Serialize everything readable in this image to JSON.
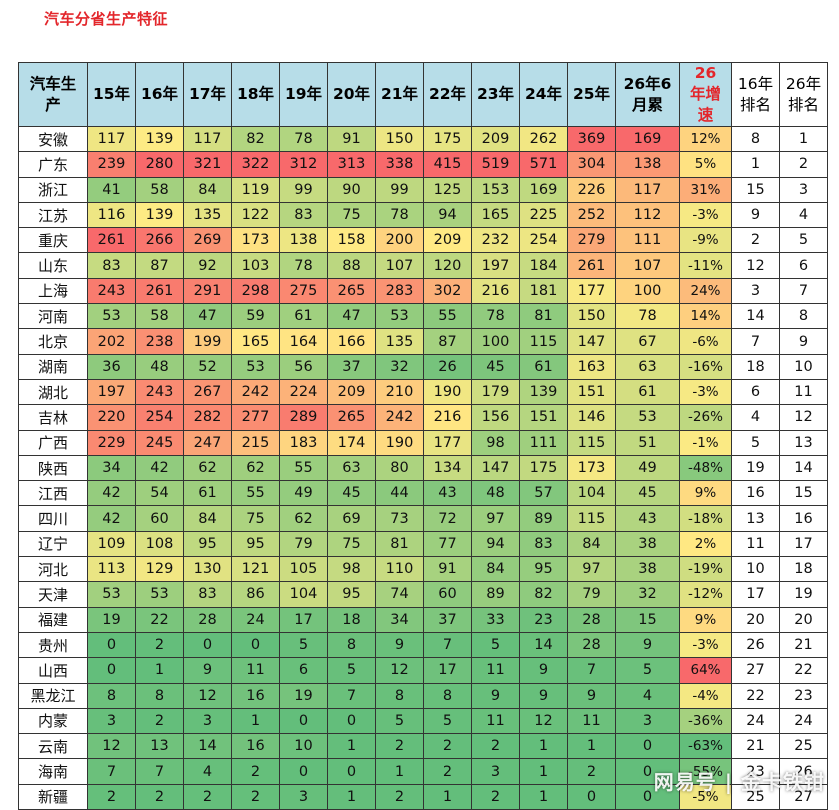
{
  "title": "汽车分省生产特征",
  "watermark": "网易号 | 金卡铁钳",
  "colors": {
    "low": "#63be7b",
    "mid": "#ffeb84",
    "high": "#f8696b",
    "header_bg": "#b7dde8",
    "title": "#e3262b"
  },
  "chart_data": {
    "type": "table",
    "title": "汽车分省生产特征",
    "columns": [
      "汽车生产",
      "15年",
      "16年",
      "17年",
      "18年",
      "19年",
      "20年",
      "21年",
      "22年",
      "23年",
      "24年",
      "25年",
      "26年6月累",
      "26年增速",
      "16年排名",
      "26年排名"
    ],
    "rows": [
      [
        "安徽",
        117,
        139,
        117,
        82,
        78,
        91,
        150,
        175,
        209,
        262,
        369,
        169,
        "12%",
        8,
        1
      ],
      [
        "广东",
        239,
        280,
        321,
        322,
        312,
        313,
        338,
        415,
        519,
        571,
        304,
        138,
        "5%",
        1,
        2
      ],
      [
        "浙江",
        41,
        58,
        84,
        119,
        99,
        90,
        99,
        125,
        153,
        169,
        226,
        117,
        "31%",
        15,
        3
      ],
      [
        "江苏",
        116,
        139,
        135,
        122,
        83,
        75,
        78,
        94,
        165,
        225,
        252,
        112,
        "-3%",
        9,
        4
      ],
      [
        "重庆",
        261,
        266,
        269,
        173,
        138,
        158,
        200,
        209,
        232,
        254,
        279,
        111,
        "-9%",
        2,
        5
      ],
      [
        "山东",
        83,
        87,
        92,
        103,
        78,
        88,
        107,
        120,
        197,
        184,
        261,
        107,
        "-11%",
        12,
        6
      ],
      [
        "上海",
        243,
        261,
        291,
        298,
        275,
        265,
        283,
        302,
        216,
        181,
        177,
        100,
        "24%",
        3,
        7
      ],
      [
        "河南",
        53,
        58,
        47,
        59,
        61,
        47,
        53,
        55,
        78,
        81,
        150,
        78,
        "14%",
        14,
        8
      ],
      [
        "北京",
        202,
        238,
        199,
        165,
        164,
        166,
        135,
        87,
        100,
        115,
        147,
        67,
        "-6%",
        7,
        9
      ],
      [
        "湖南",
        36,
        48,
        52,
        53,
        56,
        37,
        32,
        26,
        45,
        61,
        163,
        63,
        "-16%",
        18,
        10
      ],
      [
        "湖北",
        197,
        243,
        267,
        242,
        224,
        209,
        210,
        190,
        179,
        139,
        151,
        61,
        "-3%",
        6,
        11
      ],
      [
        "吉林",
        220,
        254,
        282,
        277,
        289,
        265,
        242,
        216,
        156,
        151,
        146,
        53,
        "-26%",
        4,
        12
      ],
      [
        "广西",
        229,
        245,
        247,
        215,
        183,
        174,
        190,
        177,
        98,
        111,
        115,
        51,
        "-1%",
        5,
        13
      ],
      [
        "陕西",
        34,
        42,
        62,
        62,
        55,
        63,
        80,
        134,
        147,
        175,
        173,
        49,
        "-48%",
        19,
        14
      ],
      [
        "江西",
        42,
        54,
        61,
        55,
        49,
        45,
        44,
        43,
        48,
        57,
        104,
        45,
        "9%",
        16,
        15
      ],
      [
        "四川",
        42,
        60,
        84,
        75,
        62,
        69,
        73,
        72,
        97,
        89,
        115,
        43,
        "-18%",
        13,
        16
      ],
      [
        "辽宁",
        109,
        108,
        95,
        95,
        79,
        75,
        81,
        77,
        94,
        83,
        84,
        38,
        "2%",
        11,
        17
      ],
      [
        "河北",
        113,
        129,
        130,
        121,
        105,
        98,
        110,
        91,
        84,
        95,
        97,
        38,
        "-19%",
        10,
        18
      ],
      [
        "天津",
        53,
        53,
        83,
        86,
        104,
        95,
        74,
        60,
        89,
        82,
        79,
        32,
        "-12%",
        17,
        19
      ],
      [
        "福建",
        19,
        22,
        28,
        24,
        17,
        18,
        34,
        37,
        33,
        23,
        28,
        15,
        "9%",
        20,
        20
      ],
      [
        "贵州",
        0,
        2,
        0,
        0,
        5,
        8,
        9,
        7,
        5,
        14,
        28,
        9,
        "-3%",
        26,
        21
      ],
      [
        "山西",
        0,
        1,
        9,
        11,
        6,
        5,
        12,
        17,
        11,
        9,
        7,
        5,
        "64%",
        27,
        22
      ],
      [
        "黑龙江",
        8,
        8,
        12,
        16,
        19,
        7,
        8,
        8,
        9,
        9,
        9,
        4,
        "-4%",
        22,
        23
      ],
      [
        "内蒙",
        3,
        2,
        3,
        1,
        0,
        0,
        5,
        5,
        11,
        12,
        11,
        3,
        "-36%",
        24,
        24
      ],
      [
        "云南",
        12,
        13,
        14,
        16,
        10,
        1,
        2,
        2,
        2,
        1,
        1,
        0,
        "-63%",
        21,
        25
      ],
      [
        "海南",
        7,
        7,
        4,
        2,
        0,
        0,
        1,
        2,
        3,
        1,
        2,
        0,
        "-55%",
        23,
        26
      ],
      [
        "新疆",
        2,
        2,
        2,
        2,
        3,
        1,
        2,
        1,
        2,
        1,
        0,
        0,
        "-5%",
        25,
        27
      ]
    ]
  }
}
